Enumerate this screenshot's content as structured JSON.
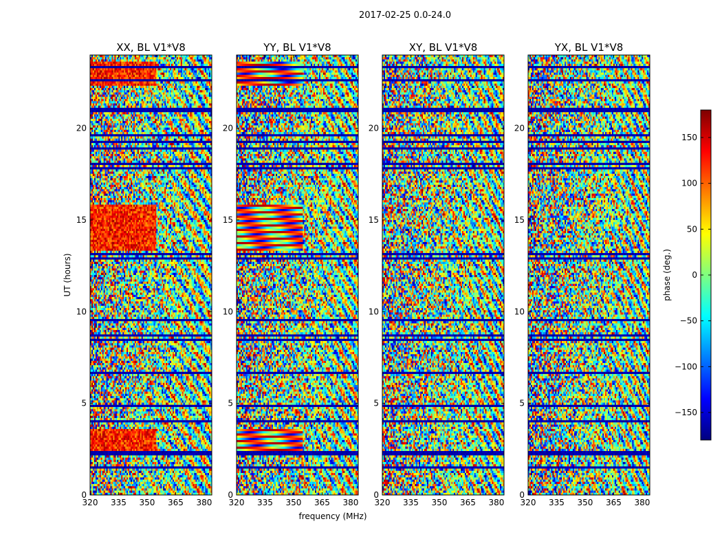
{
  "figure": {
    "title": "2017-02-25 0.0-24.0",
    "xlabel": "frequency (MHz)",
    "ylabel": "UT (hours)"
  },
  "colorbar": {
    "label": "phase (deg.)",
    "range": [
      -180,
      180
    ],
    "ticks": [
      "150",
      "100",
      "50",
      "0",
      "−50",
      "−100",
      "−150"
    ],
    "tick_values": [
      150,
      100,
      50,
      0,
      -50,
      -100,
      -150
    ],
    "colormap": "jet",
    "colors": [
      "#00007f",
      "#0000ff",
      "#007fff",
      "#00ffff",
      "#7fff7f",
      "#ffff00",
      "#ff7f00",
      "#ff0000",
      "#7f0000"
    ]
  },
  "chart_data": [
    {
      "type": "heatmap",
      "title": "XX, BL V1*V8",
      "xlim": [
        320,
        384
      ],
      "ylim": [
        0,
        24
      ],
      "xticks": [
        320,
        335,
        350,
        365,
        380
      ],
      "yticks": [
        0,
        5,
        10,
        15,
        20
      ],
      "xtick_labels": [
        "320",
        "335",
        "350",
        "365",
        "380"
      ],
      "ytick_labels": [
        "0",
        "5",
        "10",
        "15",
        "20"
      ],
      "value": "phase (deg.)"
    },
    {
      "type": "heatmap",
      "title": "YY, BL V1*V8",
      "xlim": [
        320,
        384
      ],
      "ylim": [
        0,
        24
      ],
      "xticks": [
        320,
        335,
        350,
        365,
        380
      ],
      "yticks": [
        0,
        5,
        10,
        15,
        20
      ],
      "xtick_labels": [
        "320",
        "335",
        "350",
        "365",
        "380"
      ],
      "ytick_labels": [
        "0",
        "5",
        "10",
        "15",
        "20"
      ],
      "value": "phase (deg.)"
    },
    {
      "type": "heatmap",
      "title": "XY, BL V1*V8",
      "xlim": [
        320,
        384
      ],
      "ylim": [
        0,
        24
      ],
      "xticks": [
        320,
        335,
        350,
        365,
        380
      ],
      "yticks": [
        0,
        5,
        10,
        15,
        20
      ],
      "xtick_labels": [
        "320",
        "335",
        "350",
        "365",
        "380"
      ],
      "ytick_labels": [
        "0",
        "5",
        "10",
        "15",
        "20"
      ],
      "value": "phase (deg.)"
    },
    {
      "type": "heatmap",
      "title": "YX, BL V1*V8",
      "xlim": [
        320,
        384
      ],
      "ylim": [
        0,
        24
      ],
      "xticks": [
        320,
        335,
        350,
        365,
        380
      ],
      "yticks": [
        0,
        5,
        10,
        15,
        20
      ],
      "xtick_labels": [
        "320",
        "335",
        "350",
        "365",
        "380"
      ],
      "ytick_labels": [
        "0",
        "5",
        "10",
        "15",
        "20"
      ],
      "value": "phase (deg.)"
    }
  ]
}
